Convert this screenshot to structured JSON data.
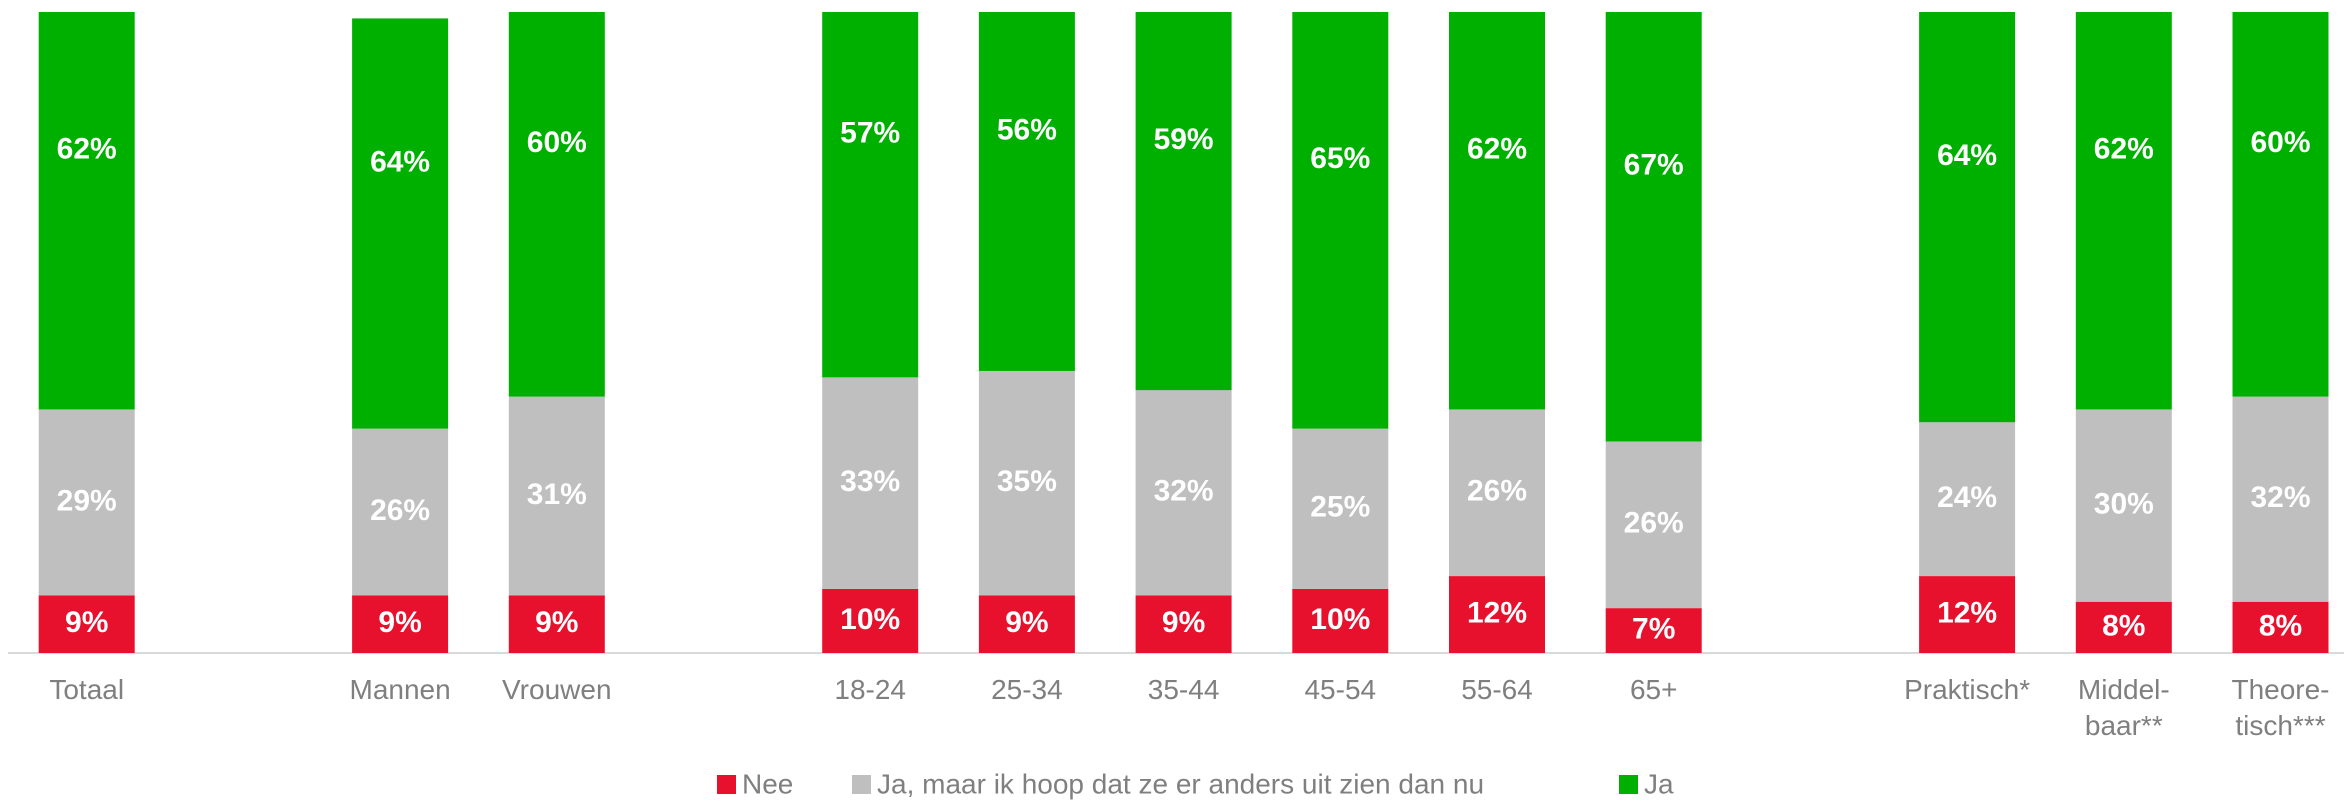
{
  "chart_data": {
    "type": "stacked_bar",
    "categories": [
      "Totaal",
      null,
      "Mannen",
      "Vrouwen",
      null,
      "18-24",
      "25-34",
      "35-44",
      "45-54",
      "55-64",
      "65+",
      null,
      "Praktisch*",
      "Middel-\nbaar**",
      "Theore-\ntisch***"
    ],
    "ylim": [
      0,
      100
    ],
    "legend": "bottom",
    "series": [
      {
        "name": "Nee",
        "color": "#e8112d",
        "values": [
          9,
          null,
          9,
          9,
          null,
          10,
          9,
          9,
          10,
          12,
          7,
          null,
          12,
          8,
          8
        ],
        "value_labels": [
          "9%",
          null,
          "9%",
          "9%",
          null,
          "10%",
          "9%",
          "9%",
          "10%",
          "12%",
          "7%",
          null,
          "12%",
          "8%",
          "8%"
        ]
      },
      {
        "name": "Ja, maar ik hoop dat ze er anders uit zien dan nu",
        "color": "#bfbfbf",
        "values": [
          29,
          null,
          26,
          31,
          null,
          33,
          35,
          32,
          25,
          26,
          26,
          null,
          24,
          30,
          32
        ],
        "value_labels": [
          "29%",
          null,
          "26%",
          "31%",
          null,
          "33%",
          "35%",
          "32%",
          "25%",
          "26%",
          "26%",
          null,
          "24%",
          "30%",
          "32%"
        ]
      },
      {
        "name": "Ja",
        "color": "#00b000",
        "values": [
          62,
          null,
          64,
          60,
          null,
          57,
          56,
          59,
          65,
          62,
          67,
          null,
          64,
          62,
          60
        ],
        "value_labels": [
          "62%",
          null,
          "64%",
          "60%",
          null,
          "57%",
          "56%",
          "59%",
          "65%",
          "62%",
          "67%",
          null,
          "64%",
          "62%",
          "60%"
        ]
      }
    ]
  }
}
